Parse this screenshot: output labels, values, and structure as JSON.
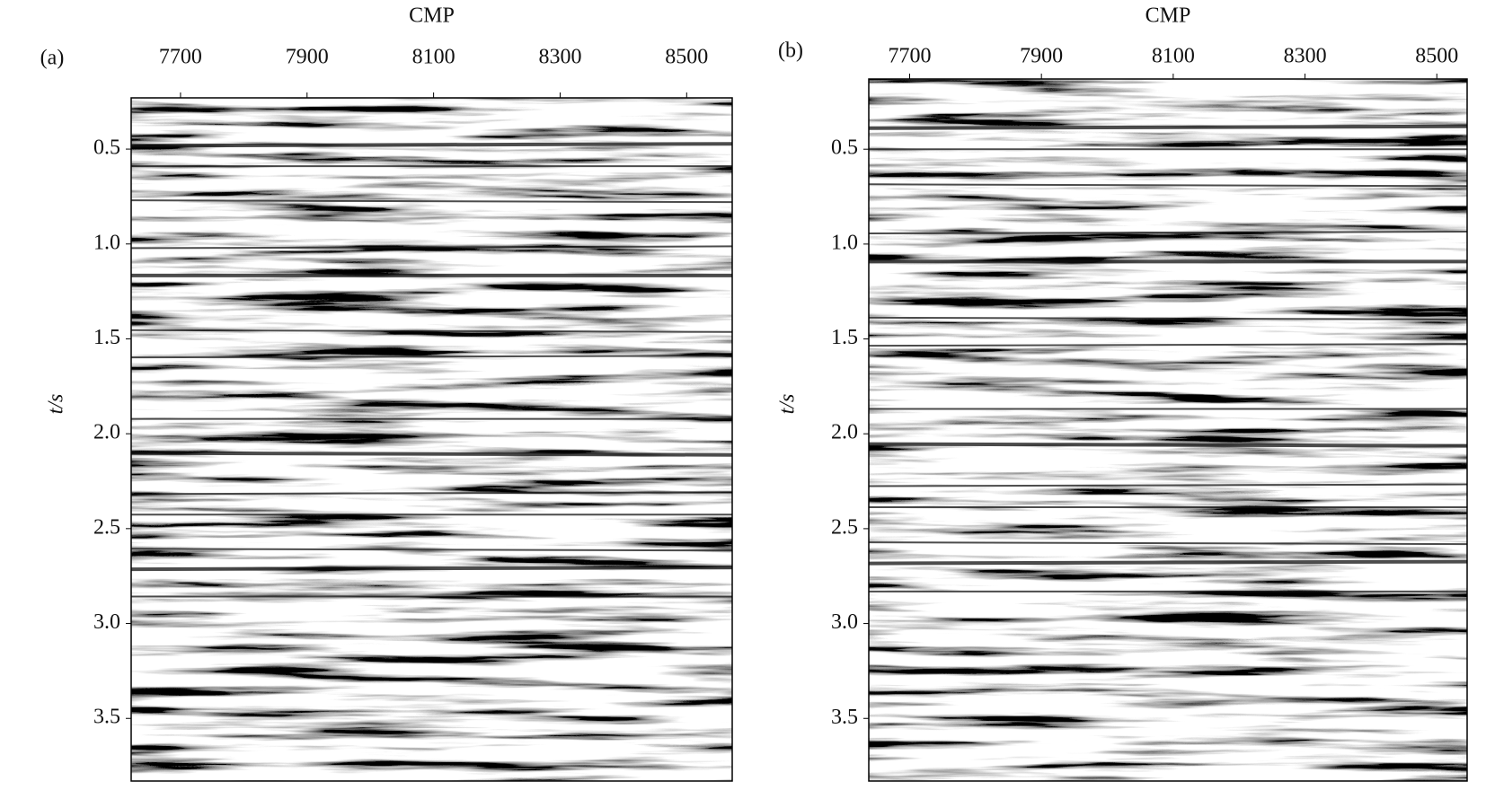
{
  "chart_data": [
    {
      "type": "seismic",
      "panel_label": "(a)",
      "x_label": "CMP",
      "y_label": "t/s",
      "xlim": [
        7622,
        8572
      ],
      "xticks": [
        7700,
        7900,
        8100,
        8300,
        8500
      ],
      "ylim": [
        0.23,
        3.83
      ],
      "y_inverted": true,
      "yticks": [
        0.5,
        {
          "value": 1,
          "label": "1.0"
        },
        1.5,
        {
          "value": 2,
          "label": "2.0"
        },
        2.5,
        {
          "value": 3,
          "label": "3.0"
        },
        3.5
      ]
    },
    {
      "type": "seismic",
      "panel_label": "(b)",
      "x_label": "CMP",
      "y_label": "t/s",
      "xlim": [
        7638,
        8546
      ],
      "xticks": [
        7700,
        7900,
        8100,
        8300,
        8500
      ],
      "ylim": [
        0.13,
        3.83
      ],
      "y_inverted": true,
      "yticks": [
        0.5,
        {
          "value": 1,
          "label": "1.0"
        },
        1.5,
        {
          "value": 2,
          "label": "2.0"
        },
        2.5,
        {
          "value": 3,
          "label": "3.0"
        },
        3.5
      ]
    }
  ]
}
